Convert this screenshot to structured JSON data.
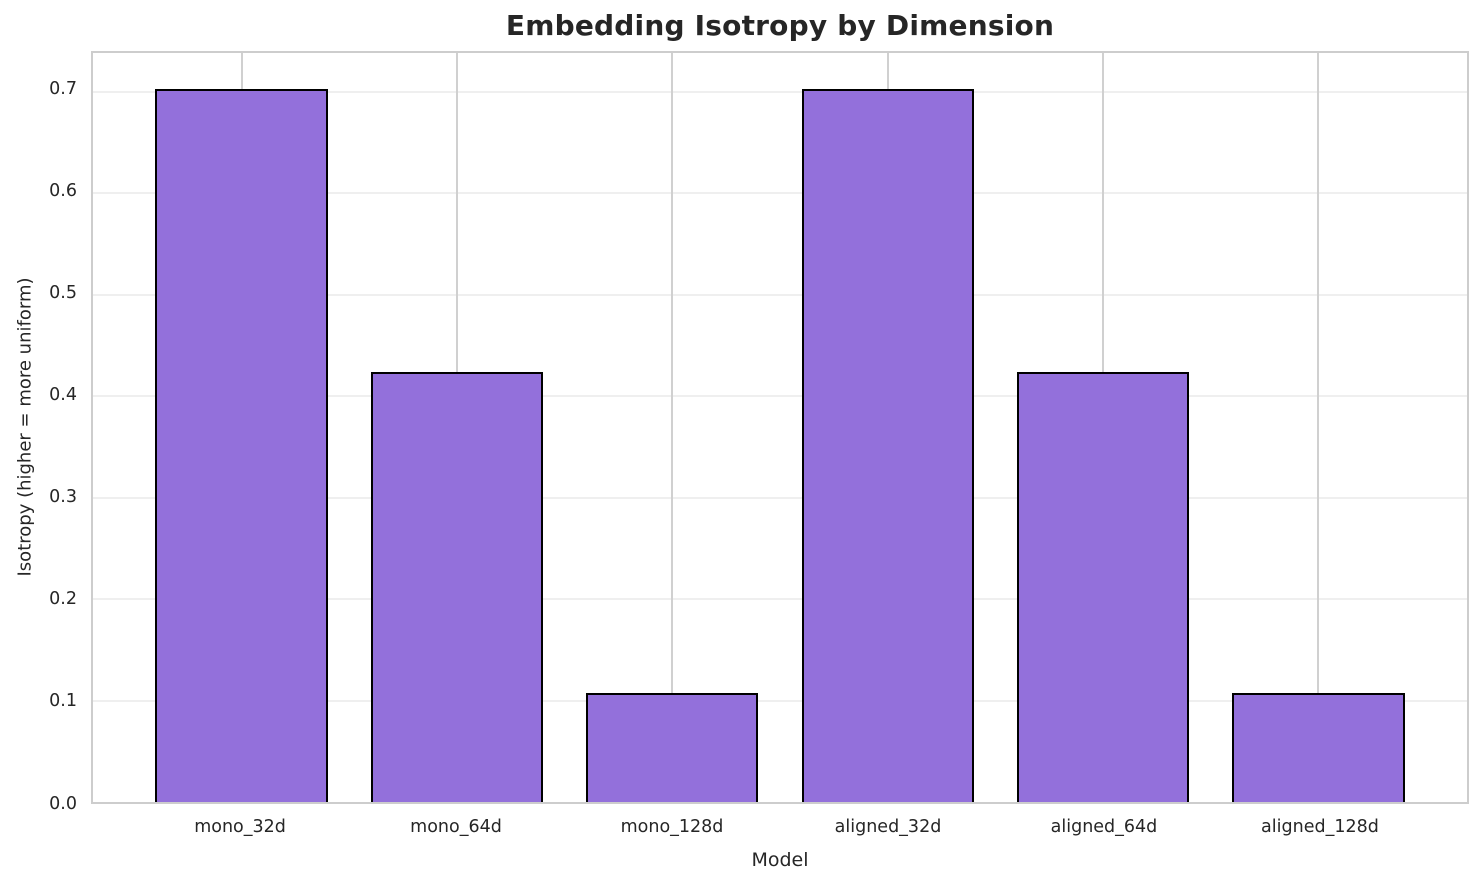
{
  "chart_data": {
    "type": "bar",
    "title": "Embedding Isotropy by Dimension",
    "xlabel": "Model",
    "ylabel": "Isotropy (higher = more uniform)",
    "categories": [
      "mono_32d",
      "mono_64d",
      "mono_128d",
      "aligned_32d",
      "aligned_64d",
      "aligned_128d"
    ],
    "values": [
      0.703,
      0.424,
      0.107,
      0.703,
      0.424,
      0.107
    ],
    "yticks": [
      0.0,
      0.1,
      0.2,
      0.3,
      0.4,
      0.5,
      0.6,
      0.7
    ],
    "ytick_labels": [
      "0.0",
      "0.1",
      "0.2",
      "0.3",
      "0.4",
      "0.5",
      "0.6",
      "0.7"
    ],
    "ylim": [
      0,
      0.738
    ],
    "xlim": [
      -0.69,
      5.69
    ],
    "bar_width_units": 0.8,
    "grid": true,
    "legend_position": "none",
    "colors": {
      "bar_fill": "#9370DB",
      "bar_edge": "#000000",
      "hgrid": "#efefef",
      "vgrid": "#d0d0d0",
      "spine": "#cdcdcd",
      "text": "#262626"
    }
  }
}
